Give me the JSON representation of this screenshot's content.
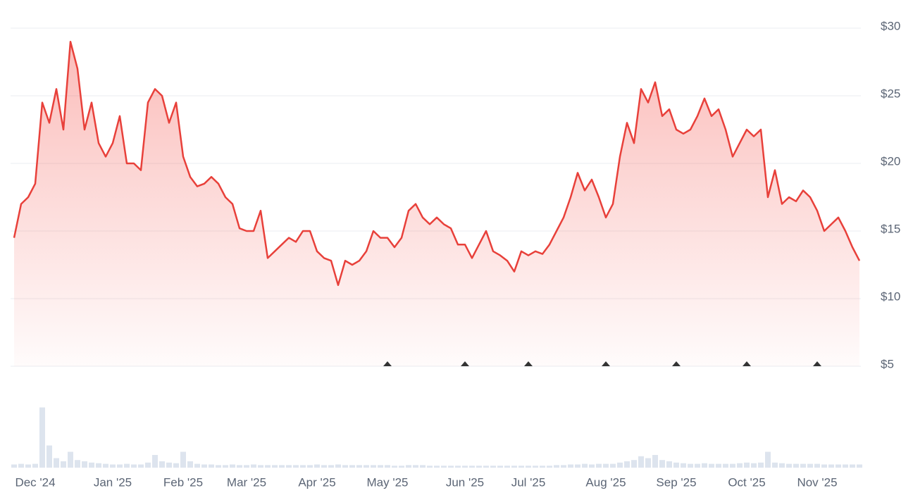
{
  "chart_data": {
    "type": "line",
    "categories": [
      null,
      null,
      null,
      "Dec '24",
      null,
      null,
      null,
      null,
      null,
      null,
      null,
      null,
      null,
      null,
      "Jan '25",
      null,
      null,
      null,
      null,
      null,
      null,
      null,
      null,
      null,
      "Feb '25",
      null,
      null,
      null,
      null,
      null,
      null,
      null,
      null,
      "Mar '25",
      null,
      null,
      null,
      null,
      null,
      null,
      null,
      null,
      null,
      "Apr '25",
      null,
      null,
      null,
      null,
      null,
      null,
      null,
      null,
      null,
      "May '25",
      null,
      null,
      null,
      null,
      null,
      null,
      null,
      null,
      null,
      null,
      "Jun '25",
      null,
      null,
      null,
      null,
      null,
      null,
      null,
      null,
      "Jul '25",
      null,
      null,
      null,
      null,
      null,
      null,
      null,
      null,
      null,
      null,
      "Aug '25",
      null,
      null,
      null,
      null,
      null,
      null,
      null,
      null,
      null,
      "Sep '25",
      null,
      null,
      null,
      null,
      null,
      null,
      null,
      null,
      null,
      "Oct '25",
      null,
      null,
      null,
      null,
      null,
      null,
      null,
      null,
      null,
      "Nov '25",
      null,
      null,
      null,
      null,
      null,
      null
    ],
    "series": [
      {
        "color": "#e8403a",
        "values": [
          14.5,
          17,
          17.5,
          18.5,
          24.5,
          23,
          25.5,
          22.5,
          29,
          27,
          22.5,
          24.5,
          21.5,
          20.5,
          21.5,
          23.5,
          20,
          20,
          19.5,
          24.5,
          25.5,
          25,
          23,
          24.5,
          20.5,
          19,
          18.3,
          18.5,
          19,
          18.5,
          17.5,
          17,
          15.2,
          15,
          15,
          16.5,
          13,
          13.5,
          14,
          14.5,
          14.2,
          15,
          15,
          13.5,
          13,
          12.8,
          11,
          12.8,
          12.5,
          12.8,
          13.5,
          15,
          14.5,
          14.5,
          13.8,
          14.5,
          16.5,
          17,
          16,
          15.5,
          16,
          15.5,
          15.2,
          14,
          14,
          13,
          14,
          15,
          13.5,
          13.2,
          12.8,
          12,
          13.5,
          13.2,
          13.5,
          13.3,
          14,
          15,
          16,
          17.5,
          19.3,
          18,
          18.8,
          17.5,
          16,
          17,
          20.5,
          23,
          21.5,
          25.5,
          24.5,
          26,
          23.5,
          24,
          22.5,
          22.2,
          22.5,
          23.5,
          24.8,
          23.5,
          24,
          22.5,
          20.5,
          21.5,
          22.5,
          22,
          22.5,
          17.5,
          19.5,
          17,
          17.5,
          17.2,
          18,
          17.5,
          16.5,
          15,
          15.5,
          16,
          15,
          13.8,
          12.8
        ]
      }
    ],
    "ylim": [
      5,
      30
    ],
    "yticks": [
      {
        "value": 5,
        "label": "$5"
      },
      {
        "value": 10,
        "label": "$10"
      },
      {
        "value": 15,
        "label": "$15"
      },
      {
        "value": 20,
        "label": "$20"
      },
      {
        "value": 25,
        "label": "$25"
      },
      {
        "value": 30,
        "label": "$30"
      }
    ],
    "grid": true,
    "volume": {
      "color": "#dde4ee",
      "ylim": [
        0,
        100
      ],
      "values": [
        5,
        6,
        5,
        6,
        95,
        35,
        15,
        10,
        25,
        12,
        10,
        8,
        7,
        6,
        5,
        5,
        6,
        5,
        5,
        8,
        20,
        10,
        8,
        7,
        25,
        10,
        6,
        5,
        5,
        4,
        4,
        5,
        4,
        4,
        5,
        4,
        4,
        4,
        4,
        4,
        4,
        4,
        4,
        5,
        4,
        4,
        5,
        4,
        4,
        4,
        4,
        4,
        4,
        4,
        3,
        3,
        4,
        4,
        4,
        3,
        3,
        3,
        3,
        3,
        3,
        3,
        3,
        3,
        3,
        3,
        3,
        3,
        3,
        3,
        3,
        3,
        3,
        4,
        4,
        5,
        5,
        6,
        5,
        6,
        6,
        6,
        8,
        10,
        12,
        18,
        15,
        20,
        12,
        10,
        8,
        7,
        6,
        6,
        7,
        6,
        6,
        6,
        6,
        7,
        8,
        7,
        8,
        25,
        8,
        7,
        6,
        6,
        6,
        6,
        6,
        5,
        5,
        5,
        5,
        5,
        5
      ]
    }
  }
}
